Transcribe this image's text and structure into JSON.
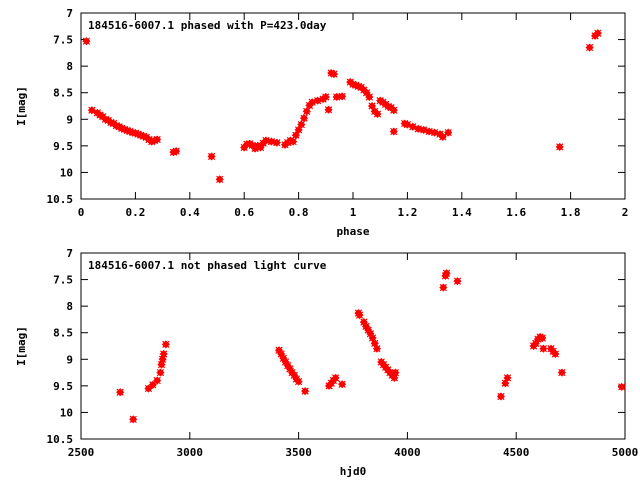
{
  "chart_data": [
    {
      "type": "scatter",
      "title": "184516-6007.1 phased with P=423.0day",
      "xlabel": "phase",
      "ylabel": "I[mag]",
      "xlim": [
        0,
        2
      ],
      "ylim": [
        10.5,
        7
      ],
      "y_inverted": true,
      "x_ticks": [
        0,
        0.2,
        0.4,
        0.6,
        0.8,
        1,
        1.2,
        1.4,
        1.6,
        1.8,
        2
      ],
      "x_tick_labels": [
        "0",
        "0.2",
        "0.4",
        "0.6",
        "0.8",
        "1",
        "1.2",
        "1.4",
        "1.6",
        "1.8",
        "2"
      ],
      "y_ticks": [
        7,
        7.5,
        8,
        8.5,
        9,
        9.5,
        10,
        10.5
      ],
      "y_tick_labels": [
        "7",
        "7.5",
        "8",
        "8.5",
        "9",
        "9.5",
        "10",
        "10.5"
      ],
      "grid": false,
      "marker_color": "#ff0000",
      "points": [
        [
          0.02,
          7.53
        ],
        [
          0.04,
          8.83
        ],
        [
          0.06,
          8.88
        ],
        [
          0.07,
          8.92
        ],
        [
          0.08,
          8.95
        ],
        [
          0.09,
          9.0
        ],
        [
          0.1,
          9.02
        ],
        [
          0.11,
          9.06
        ],
        [
          0.12,
          9.08
        ],
        [
          0.13,
          9.12
        ],
        [
          0.14,
          9.14
        ],
        [
          0.15,
          9.17
        ],
        [
          0.16,
          9.19
        ],
        [
          0.17,
          9.21
        ],
        [
          0.18,
          9.23
        ],
        [
          0.19,
          9.25
        ],
        [
          0.2,
          9.26
        ],
        [
          0.21,
          9.28
        ],
        [
          0.22,
          9.3
        ],
        [
          0.23,
          9.32
        ],
        [
          0.24,
          9.34
        ],
        [
          0.25,
          9.38
        ],
        [
          0.26,
          9.42
        ],
        [
          0.27,
          9.4
        ],
        [
          0.28,
          9.38
        ],
        [
          0.34,
          9.62
        ],
        [
          0.35,
          9.6
        ],
        [
          0.48,
          9.7
        ],
        [
          0.51,
          10.13
        ],
        [
          0.6,
          9.53
        ],
        [
          0.61,
          9.47
        ],
        [
          0.62,
          9.46
        ],
        [
          0.63,
          9.49
        ],
        [
          0.64,
          9.55
        ],
        [
          0.65,
          9.5
        ],
        [
          0.66,
          9.53
        ],
        [
          0.67,
          9.45
        ],
        [
          0.68,
          9.4
        ],
        [
          0.7,
          9.42
        ],
        [
          0.72,
          9.44
        ],
        [
          0.75,
          9.48
        ],
        [
          0.76,
          9.44
        ],
        [
          0.77,
          9.4
        ],
        [
          0.78,
          9.42
        ],
        [
          0.79,
          9.3
        ],
        [
          0.8,
          9.2
        ],
        [
          0.81,
          9.1
        ],
        [
          0.82,
          8.98
        ],
        [
          0.83,
          8.85
        ],
        [
          0.84,
          8.74
        ],
        [
          0.85,
          8.68
        ],
        [
          0.87,
          8.65
        ],
        [
          0.89,
          8.62
        ],
        [
          0.9,
          8.58
        ],
        [
          0.91,
          8.82
        ],
        [
          0.92,
          8.13
        ],
        [
          0.93,
          8.15
        ],
        [
          0.94,
          8.58
        ],
        [
          0.96,
          8.57
        ],
        [
          0.99,
          8.3
        ],
        [
          1.0,
          8.34
        ],
        [
          1.01,
          8.36
        ],
        [
          1.02,
          8.38
        ],
        [
          1.03,
          8.4
        ],
        [
          1.04,
          8.45
        ],
        [
          1.05,
          8.5
        ],
        [
          1.06,
          8.58
        ],
        [
          1.07,
          8.75
        ],
        [
          1.08,
          8.85
        ],
        [
          1.09,
          8.9
        ],
        [
          1.1,
          8.65
        ],
        [
          1.11,
          8.68
        ],
        [
          1.12,
          8.72
        ],
        [
          1.13,
          8.76
        ],
        [
          1.14,
          8.78
        ],
        [
          1.15,
          8.83
        ],
        [
          1.15,
          9.23
        ],
        [
          1.19,
          9.08
        ],
        [
          1.2,
          9.1
        ],
        [
          1.22,
          9.14
        ],
        [
          1.24,
          9.18
        ],
        [
          1.26,
          9.2
        ],
        [
          1.28,
          9.23
        ],
        [
          1.3,
          9.25
        ],
        [
          1.32,
          9.28
        ],
        [
          1.33,
          9.33
        ],
        [
          1.35,
          9.25
        ],
        [
          1.76,
          9.52
        ],
        [
          1.87,
          7.65
        ],
        [
          1.89,
          7.43
        ],
        [
          1.9,
          7.38
        ]
      ]
    },
    {
      "type": "scatter",
      "title": "184516-6007.1 not phased light curve",
      "xlabel": "hjd0",
      "ylabel": "I[mag]",
      "xlim": [
        2500,
        5000
      ],
      "ylim": [
        10.5,
        7
      ],
      "y_inverted": true,
      "x_ticks": [
        2500,
        3000,
        3500,
        4000,
        4500,
        5000
      ],
      "x_tick_labels": [
        "2500",
        "3000",
        "3500",
        "4000",
        "4500",
        "5000"
      ],
      "y_ticks": [
        7,
        7.5,
        8,
        8.5,
        9,
        9.5,
        10,
        10.5
      ],
      "y_tick_labels": [
        "7",
        "7.5",
        "8",
        "8.5",
        "9",
        "9.5",
        "10",
        "10.5"
      ],
      "grid": false,
      "marker_color": "#ff0000",
      "points": [
        [
          2680,
          9.62
        ],
        [
          2740,
          10.13
        ],
        [
          2810,
          9.55
        ],
        [
          2830,
          9.48
        ],
        [
          2850,
          9.4
        ],
        [
          2865,
          9.25
        ],
        [
          2870,
          9.1
        ],
        [
          2875,
          9.0
        ],
        [
          2880,
          8.9
        ],
        [
          2890,
          8.72
        ],
        [
          3410,
          8.83
        ],
        [
          3420,
          8.9
        ],
        [
          3430,
          8.98
        ],
        [
          3440,
          9.05
        ],
        [
          3450,
          9.12
        ],
        [
          3460,
          9.18
        ],
        [
          3470,
          9.25
        ],
        [
          3480,
          9.3
        ],
        [
          3490,
          9.37
        ],
        [
          3500,
          9.42
        ],
        [
          3530,
          9.6
        ],
        [
          3640,
          9.5
        ],
        [
          3650,
          9.45
        ],
        [
          3660,
          9.4
        ],
        [
          3670,
          9.35
        ],
        [
          3700,
          9.47
        ],
        [
          3775,
          8.13
        ],
        [
          3780,
          8.17
        ],
        [
          3800,
          8.3
        ],
        [
          3810,
          8.38
        ],
        [
          3820,
          8.45
        ],
        [
          3830,
          8.52
        ],
        [
          3840,
          8.6
        ],
        [
          3850,
          8.7
        ],
        [
          3860,
          8.8
        ],
        [
          3880,
          9.05
        ],
        [
          3890,
          9.1
        ],
        [
          3900,
          9.15
        ],
        [
          3910,
          9.2
        ],
        [
          3920,
          9.25
        ],
        [
          3930,
          9.3
        ],
        [
          3940,
          9.35
        ],
        [
          3945,
          9.25
        ],
        [
          4165,
          7.65
        ],
        [
          4175,
          7.43
        ],
        [
          4180,
          7.38
        ],
        [
          4230,
          7.53
        ],
        [
          4430,
          9.7
        ],
        [
          4450,
          9.45
        ],
        [
          4460,
          9.35
        ],
        [
          4580,
          8.75
        ],
        [
          4590,
          8.7
        ],
        [
          4600,
          8.62
        ],
        [
          4610,
          8.58
        ],
        [
          4620,
          8.6
        ],
        [
          4625,
          8.8
        ],
        [
          4660,
          8.8
        ],
        [
          4670,
          8.85
        ],
        [
          4680,
          8.9
        ],
        [
          4710,
          9.25
        ],
        [
          4985,
          9.52
        ]
      ]
    }
  ]
}
